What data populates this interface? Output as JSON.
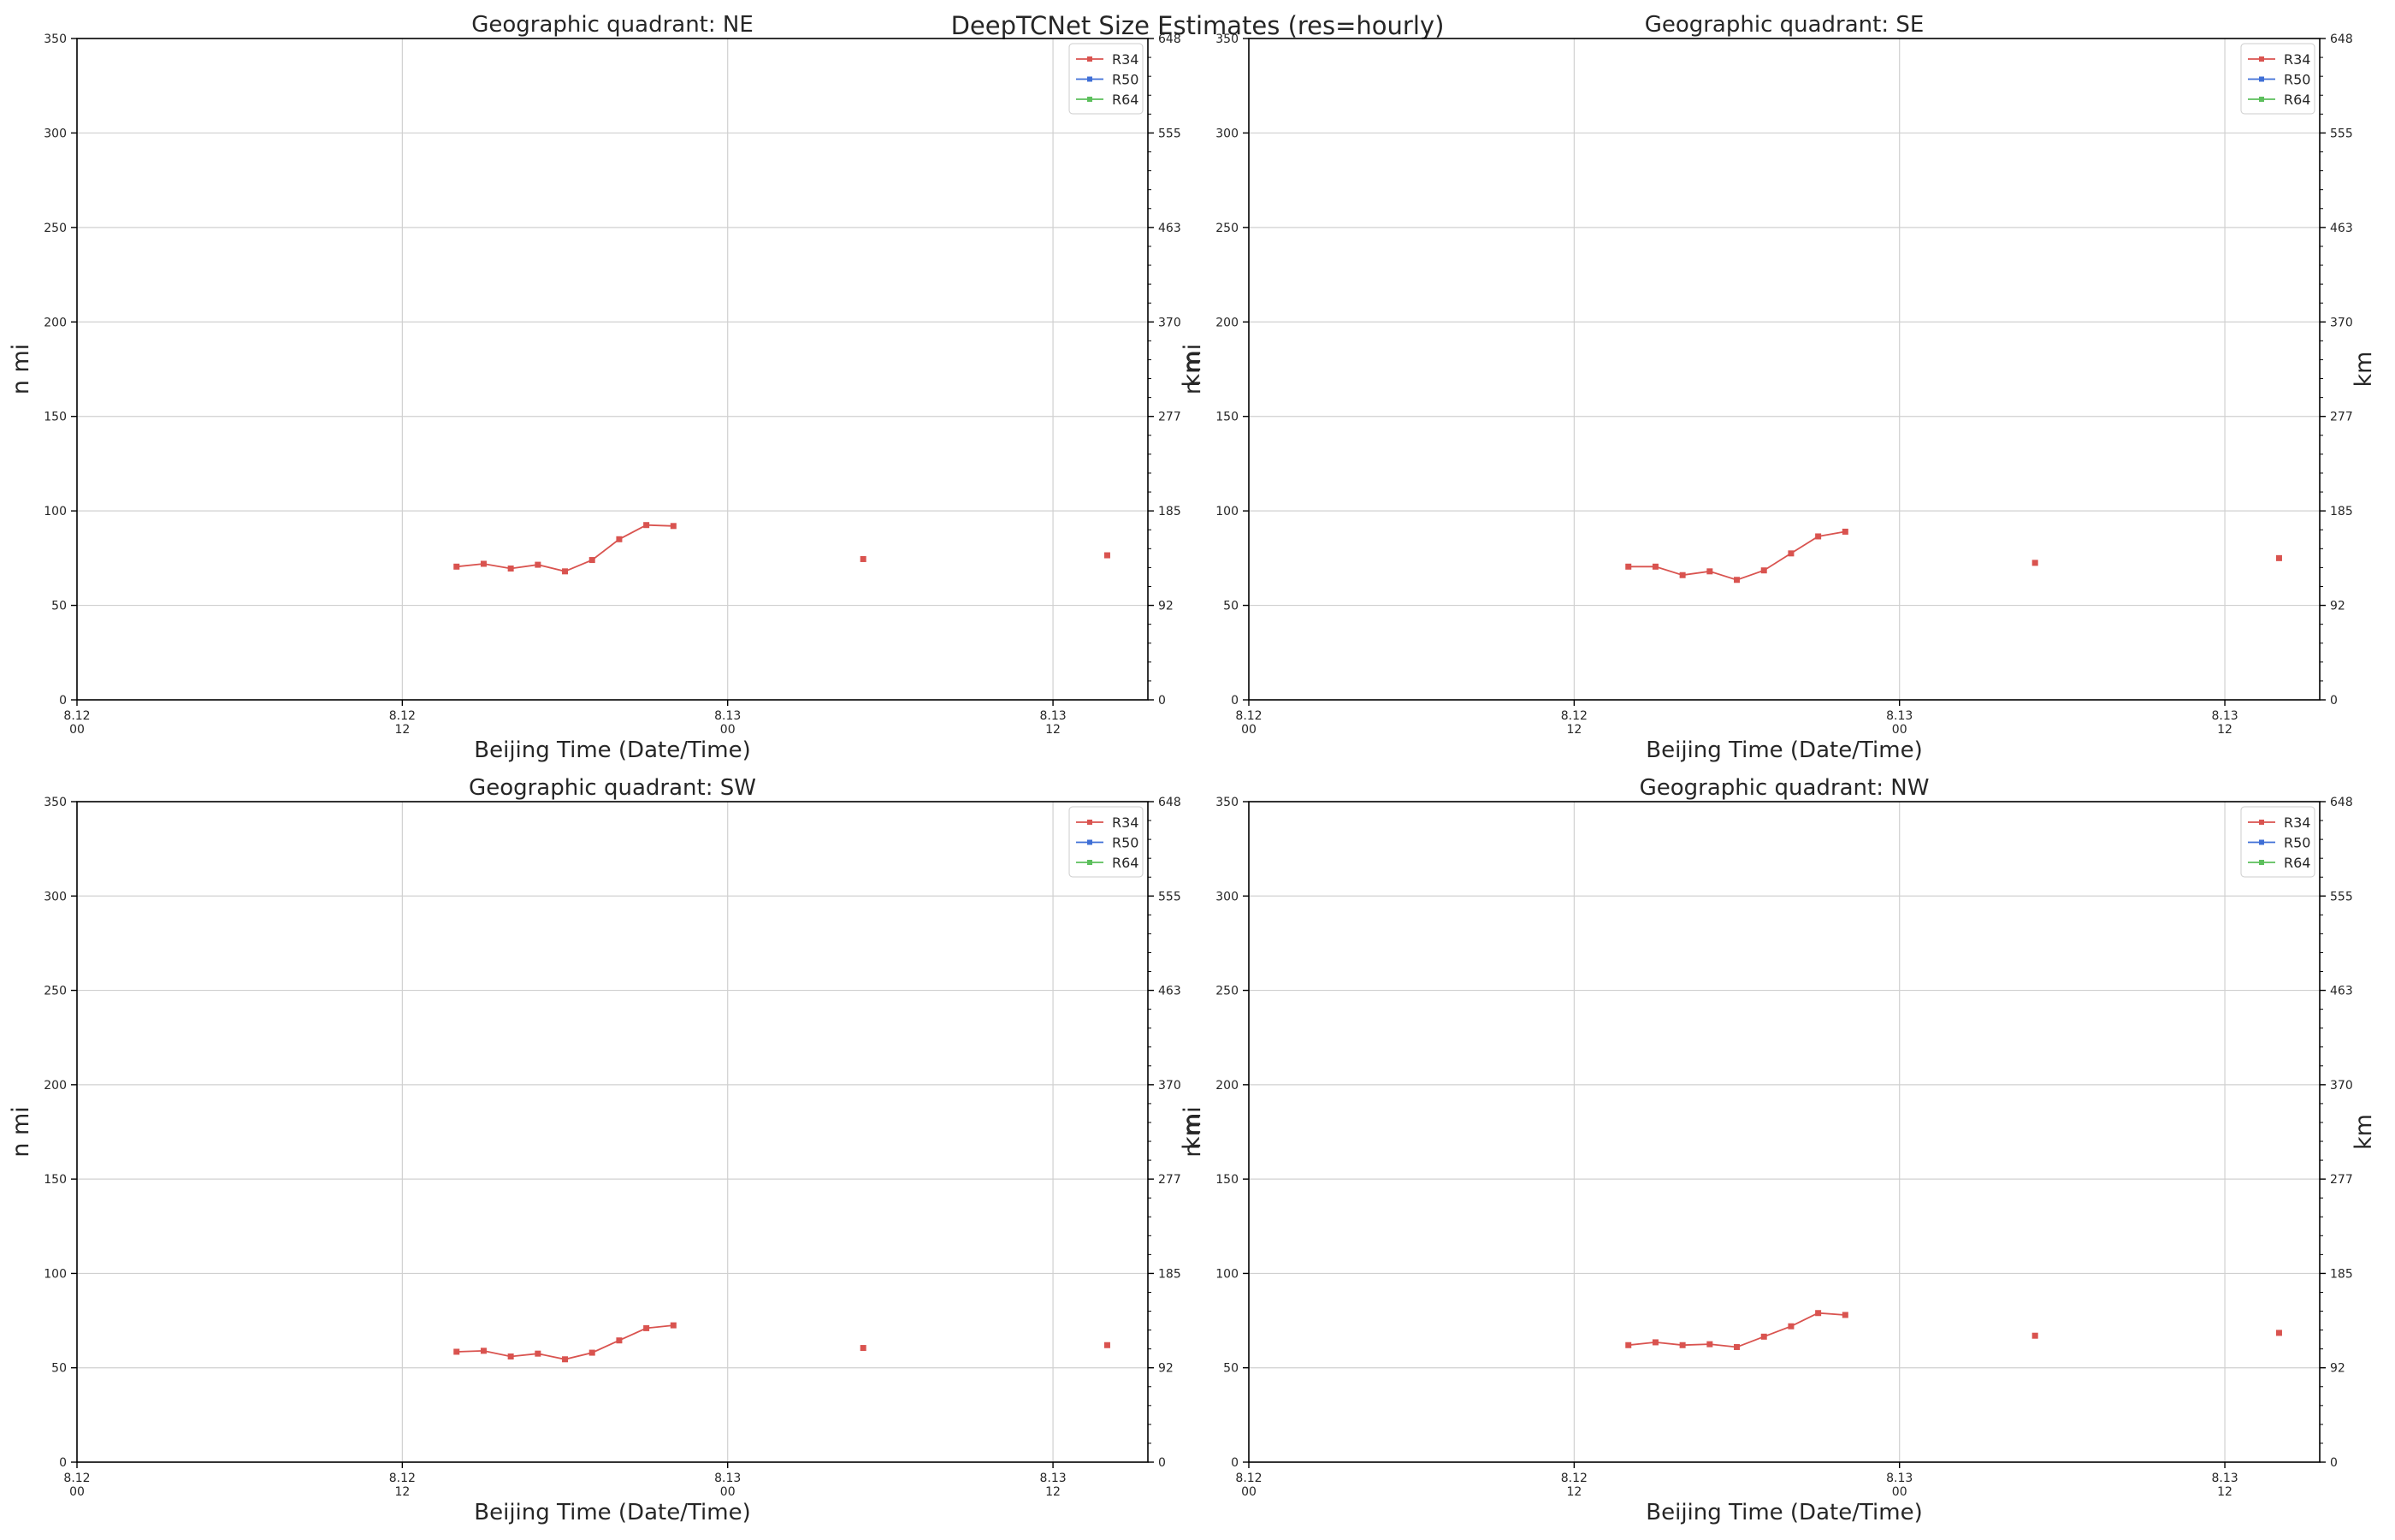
{
  "figure": {
    "title": "DeepTCNet Size Estimates (res=hourly)"
  },
  "colors": {
    "R34": "#d9534f",
    "R50": "#3f6fd6",
    "R64": "#5cbf5c",
    "grid": "#d0d0d0",
    "axis": "#000000"
  },
  "chart_data": [
    {
      "type": "line",
      "title": "Geographic quadrant: NE",
      "xlabel": "Beijing Time (Date/Time)",
      "ylabel_left": "n mi",
      "ylabel_right": "km",
      "ylim": [
        0,
        350
      ],
      "xlim": [
        0,
        39.5
      ],
      "yticks": [
        0,
        50,
        100,
        150,
        200,
        250,
        300,
        350
      ],
      "yticks_right": [
        "0",
        "92",
        "185",
        "277",
        "370",
        "463",
        "555",
        "648"
      ],
      "xticks": [
        {
          "x": 0,
          "date": "8.12",
          "time": "00"
        },
        {
          "x": 12,
          "date": "8.12",
          "time": "12"
        },
        {
          "x": 24,
          "date": "8.13",
          "time": "00"
        },
        {
          "x": 36,
          "date": "8.13",
          "time": "12"
        }
      ],
      "grid": true,
      "legend": "top-right",
      "series": [
        {
          "name": "R34",
          "segments": [
            [
              [
                14,
                70.5
              ],
              [
                15,
                72
              ],
              [
                16,
                69.5
              ],
              [
                17,
                71.5
              ],
              [
                18,
                68
              ],
              [
                19,
                74
              ],
              [
                20,
                85
              ],
              [
                21,
                92.5
              ],
              [
                22,
                92
              ]
            ],
            [
              [
                29,
                74.5
              ]
            ],
            [
              [
                38,
                76.5
              ]
            ]
          ]
        },
        {
          "name": "R50",
          "segments": []
        },
        {
          "name": "R64",
          "segments": []
        }
      ]
    },
    {
      "type": "line",
      "title": "Geographic quadrant: SE",
      "xlabel": "Beijing Time (Date/Time)",
      "ylabel_left": "n mi",
      "ylabel_right": "km",
      "ylim": [
        0,
        350
      ],
      "xlim": [
        0,
        39.5
      ],
      "yticks": [
        0,
        50,
        100,
        150,
        200,
        250,
        300,
        350
      ],
      "yticks_right": [
        "0",
        "92",
        "185",
        "277",
        "370",
        "463",
        "555",
        "648"
      ],
      "xticks": [
        {
          "x": 0,
          "date": "8.12",
          "time": "00"
        },
        {
          "x": 12,
          "date": "8.12",
          "time": "12"
        },
        {
          "x": 24,
          "date": "8.13",
          "time": "00"
        },
        {
          "x": 36,
          "date": "8.13",
          "time": "12"
        }
      ],
      "grid": true,
      "legend": "top-right",
      "series": [
        {
          "name": "R34",
          "segments": [
            [
              [
                14,
                70.5
              ],
              [
                15,
                70.5
              ],
              [
                16,
                66
              ],
              [
                17,
                68
              ],
              [
                18,
                63.5
              ],
              [
                19,
                68.5
              ],
              [
                20,
                77.5
              ],
              [
                21,
                86.5
              ],
              [
                22,
                89
              ]
            ],
            [
              [
                29,
                72.5
              ]
            ],
            [
              [
                38,
                75
              ]
            ]
          ]
        },
        {
          "name": "R50",
          "segments": []
        },
        {
          "name": "R64",
          "segments": []
        }
      ]
    },
    {
      "type": "line",
      "title": "Geographic quadrant: SW",
      "xlabel": "Beijing Time (Date/Time)",
      "ylabel_left": "n mi",
      "ylabel_right": "km",
      "ylim": [
        0,
        350
      ],
      "xlim": [
        0,
        39.5
      ],
      "yticks": [
        0,
        50,
        100,
        150,
        200,
        250,
        300,
        350
      ],
      "yticks_right": [
        "0",
        "92",
        "185",
        "277",
        "370",
        "463",
        "555",
        "648"
      ],
      "xticks": [
        {
          "x": 0,
          "date": "8.12",
          "time": "00"
        },
        {
          "x": 12,
          "date": "8.12",
          "time": "12"
        },
        {
          "x": 24,
          "date": "8.13",
          "time": "00"
        },
        {
          "x": 36,
          "date": "8.13",
          "time": "12"
        }
      ],
      "grid": true,
      "legend": "top-right",
      "series": [
        {
          "name": "R34",
          "segments": [
            [
              [
                14,
                58.5
              ],
              [
                15,
                59
              ],
              [
                16,
                56
              ],
              [
                17,
                57.5
              ],
              [
                18,
                54.5
              ],
              [
                19,
                58
              ],
              [
                20,
                64.5
              ],
              [
                21,
                71
              ],
              [
                22,
                72.5
              ]
            ],
            [
              [
                29,
                60.5
              ]
            ],
            [
              [
                38,
                62
              ]
            ]
          ]
        },
        {
          "name": "R50",
          "segments": []
        },
        {
          "name": "R64",
          "segments": []
        }
      ]
    },
    {
      "type": "line",
      "title": "Geographic quadrant: NW",
      "xlabel": "Beijing Time (Date/Time)",
      "ylabel_left": "n mi",
      "ylabel_right": "km",
      "ylim": [
        0,
        350
      ],
      "xlim": [
        0,
        39.5
      ],
      "yticks": [
        0,
        50,
        100,
        150,
        200,
        250,
        300,
        350
      ],
      "yticks_right": [
        "0",
        "92",
        "185",
        "277",
        "370",
        "463",
        "555",
        "648"
      ],
      "xticks": [
        {
          "x": 0,
          "date": "8.12",
          "time": "00"
        },
        {
          "x": 12,
          "date": "8.12",
          "time": "12"
        },
        {
          "x": 24,
          "date": "8.13",
          "time": "00"
        },
        {
          "x": 36,
          "date": "8.13",
          "time": "12"
        }
      ],
      "grid": true,
      "legend": "top-right",
      "series": [
        {
          "name": "R34",
          "segments": [
            [
              [
                14,
                62
              ],
              [
                15,
                63.5
              ],
              [
                16,
                62
              ],
              [
                17,
                62.5
              ],
              [
                18,
                61
              ],
              [
                19,
                66.5
              ],
              [
                20,
                72
              ],
              [
                21,
                79
              ],
              [
                22,
                78
              ]
            ],
            [
              [
                29,
                67
              ]
            ],
            [
              [
                38,
                68.5
              ]
            ]
          ]
        },
        {
          "name": "R50",
          "segments": []
        },
        {
          "name": "R64",
          "segments": []
        }
      ]
    }
  ]
}
